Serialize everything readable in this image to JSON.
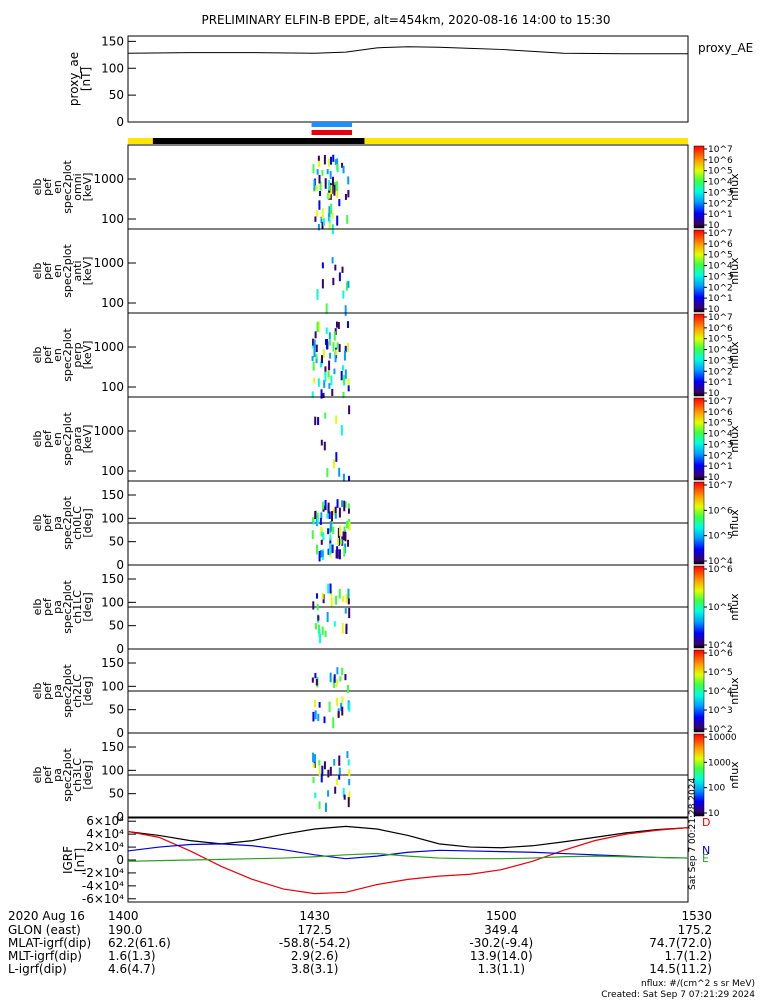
{
  "title": "PRELIMINARY ELFIN-B EPDE, alt=454km, 2020-08-16 14:00 to 15:30",
  "colors": {
    "fill_bar_yellow": "#ffe500",
    "fill_bar_black": "#000000",
    "bar_blue": "#1e8fff",
    "bar_red": "#e8000b",
    "ae_line": "#000000",
    "grf_x": "#e8000b",
    "grf_y": "#0000dd",
    "grf_z": "#2e9e1f",
    "grf_total": "#000000"
  },
  "chart_data": [
    {
      "type": "line",
      "ylabel": "proxy_ae\n[nT]",
      "yticks": [
        "0",
        "50",
        "100",
        "150"
      ],
      "ylim": [
        0,
        160
      ],
      "series": [
        {
          "name": "proxy_AE",
          "x_min": [
            0,
            10,
            20,
            30,
            35,
            40,
            45,
            50,
            55,
            60,
            70,
            80,
            90
          ],
          "values": [
            128,
            129,
            129,
            128,
            130,
            138,
            140,
            139,
            137,
            135,
            128,
            127,
            127
          ]
        }
      ]
    },
    {
      "type": "heatmap",
      "panels": [
        {
          "ylabel": [
            "elb",
            "pef",
            "en",
            "spec2plot",
            "omni",
            "[keV]"
          ],
          "yscale": "log",
          "yticks": [
            "100",
            "1000"
          ],
          "cbar_ticks": [
            "10",
            "10^1",
            "10^2",
            "10^3",
            "10^4",
            "10^5",
            "10^6",
            "10^7"
          ],
          "cbar_label": "nflux"
        },
        {
          "ylabel": [
            "elb",
            "pef",
            "en",
            "spec2plot",
            "anti",
            "[keV]"
          ],
          "yscale": "log",
          "yticks": [
            "100",
            "1000"
          ],
          "cbar_ticks": [
            "10",
            "10^1",
            "10^2",
            "10^3",
            "10^4",
            "10^5",
            "10^6",
            "10^7"
          ],
          "cbar_label": "nflux"
        },
        {
          "ylabel": [
            "elb",
            "pef",
            "en",
            "spec2plot",
            "perp",
            "[keV]"
          ],
          "yscale": "log",
          "yticks": [
            "100",
            "1000"
          ],
          "cbar_ticks": [
            "10",
            "10^1",
            "10^2",
            "10^3",
            "10^4",
            "10^5",
            "10^6",
            "10^7"
          ],
          "cbar_label": "nflux"
        },
        {
          "ylabel": [
            "elb",
            "pef",
            "en",
            "spec2plot",
            "para",
            "[keV]"
          ],
          "yscale": "log",
          "yticks": [
            "100",
            "1000"
          ],
          "cbar_ticks": [
            "10",
            "10^1",
            "10^2",
            "10^3",
            "10^4",
            "10^5",
            "10^6",
            "10^7"
          ],
          "cbar_label": "nflux"
        },
        {
          "ylabel": [
            "elb",
            "pef",
            "pa",
            "spec2plot",
            "ch0LC",
            "[deg]"
          ],
          "yscale": "linear",
          "yticks": [
            "0",
            "50",
            "100",
            "150"
          ],
          "cbar_ticks": [
            "10^4",
            "10^5",
            "10^6",
            "10^7"
          ],
          "cbar_label": "nflux"
        },
        {
          "ylabel": [
            "elb",
            "pef",
            "pa",
            "spec2plot",
            "ch1LC",
            "[deg]"
          ],
          "yscale": "linear",
          "yticks": [
            "0",
            "50",
            "100",
            "150"
          ],
          "cbar_ticks": [
            "10^4",
            "10^5",
            "10^6"
          ],
          "cbar_label": "nflux"
        },
        {
          "ylabel": [
            "elb",
            "pef",
            "pa",
            "spec2plot",
            "ch2LC",
            "[deg]"
          ],
          "yscale": "linear",
          "yticks": [
            "0",
            "50",
            "100",
            "150"
          ],
          "cbar_ticks": [
            "10^2",
            "10^3",
            "10^4",
            "10^5",
            "10^6"
          ],
          "cbar_label": "nflux"
        },
        {
          "ylabel": [
            "elb",
            "pef",
            "pa",
            "spec2plot",
            "ch3LC",
            "[deg]"
          ],
          "yscale": "linear",
          "yticks": [
            "0",
            "50",
            "100",
            "150"
          ],
          "cbar_ticks": [
            "10",
            "100",
            "1000",
            "10000"
          ],
          "cbar_label": "nflux"
        }
      ]
    },
    {
      "type": "line",
      "ylabel": "IGRF\n[nT]",
      "yticks": [
        "-6×10⁴",
        "-4×10⁴",
        "-2×10⁴",
        "0",
        "2×10⁴",
        "4×10⁴",
        "6×10⁴"
      ],
      "ylim": [
        -65000,
        65000
      ],
      "x_min": [
        0,
        5,
        10,
        15,
        20,
        25,
        30,
        35,
        40,
        45,
        50,
        55,
        60,
        65,
        70,
        75,
        80,
        85,
        90
      ],
      "series": [
        {
          "name": "total",
          "values": [
            44000,
            38000,
            30000,
            25000,
            30000,
            40000,
            48000,
            52000,
            48000,
            38000,
            25000,
            20000,
            19000,
            22000,
            28000,
            35000,
            42000,
            47000,
            50000
          ]
        },
        {
          "name": "x",
          "values": [
            44000,
            35000,
            14000,
            -10000,
            -30000,
            -45000,
            -52000,
            -50000,
            -38000,
            -30000,
            -25000,
            -22000,
            -15000,
            -2000,
            15000,
            30000,
            40000,
            46000,
            50000
          ]
        },
        {
          "name": "y",
          "values": [
            14000,
            20000,
            24000,
            25000,
            22000,
            16000,
            8000,
            2000,
            6000,
            12000,
            15000,
            14000,
            13000,
            12000,
            10000,
            8000,
            6000,
            4000,
            3000
          ]
        },
        {
          "name": "z",
          "values": [
            -2000,
            -1000,
            0,
            1000,
            2000,
            3000,
            5000,
            8000,
            10000,
            6000,
            3000,
            2000,
            2000,
            3000,
            5000,
            6000,
            5000,
            4000,
            3000
          ]
        }
      ],
      "legend": [
        "D",
        "N",
        "E"
      ]
    }
  ],
  "grf_side_text": "Sat Sep  7 00:21:28 2024",
  "time_axis": {
    "row_labels": [
      "2020 Aug 16",
      "GLON (east)",
      "MLAT-igrf(dip)",
      "MLT-igrf(dip)",
      "L-igrf(dip)"
    ],
    "columns": [
      {
        "time": "1400",
        "values": [
          "190.0",
          "62.2(61.6)",
          "1.6(1.3)",
          "4.6(4.7)"
        ]
      },
      {
        "time": "1430",
        "values": [
          "172.5",
          "-58.8(-54.2)",
          "2.9(2.6)",
          "3.8(3.1)"
        ]
      },
      {
        "time": "1500",
        "values": [
          "349.4",
          "-30.2(-9.4)",
          "13.9(14.0)",
          "1.3(1.1)"
        ]
      },
      {
        "time": "1530",
        "values": [
          "175.2",
          "74.7(72.0)",
          "1.7(1.2)",
          "14.5(11.2)"
        ]
      }
    ]
  },
  "footer": {
    "units": "nflux: #/(cm^2 s sr MeV)",
    "created": "Created: Sat Sep  7 07:21:29 2024"
  }
}
